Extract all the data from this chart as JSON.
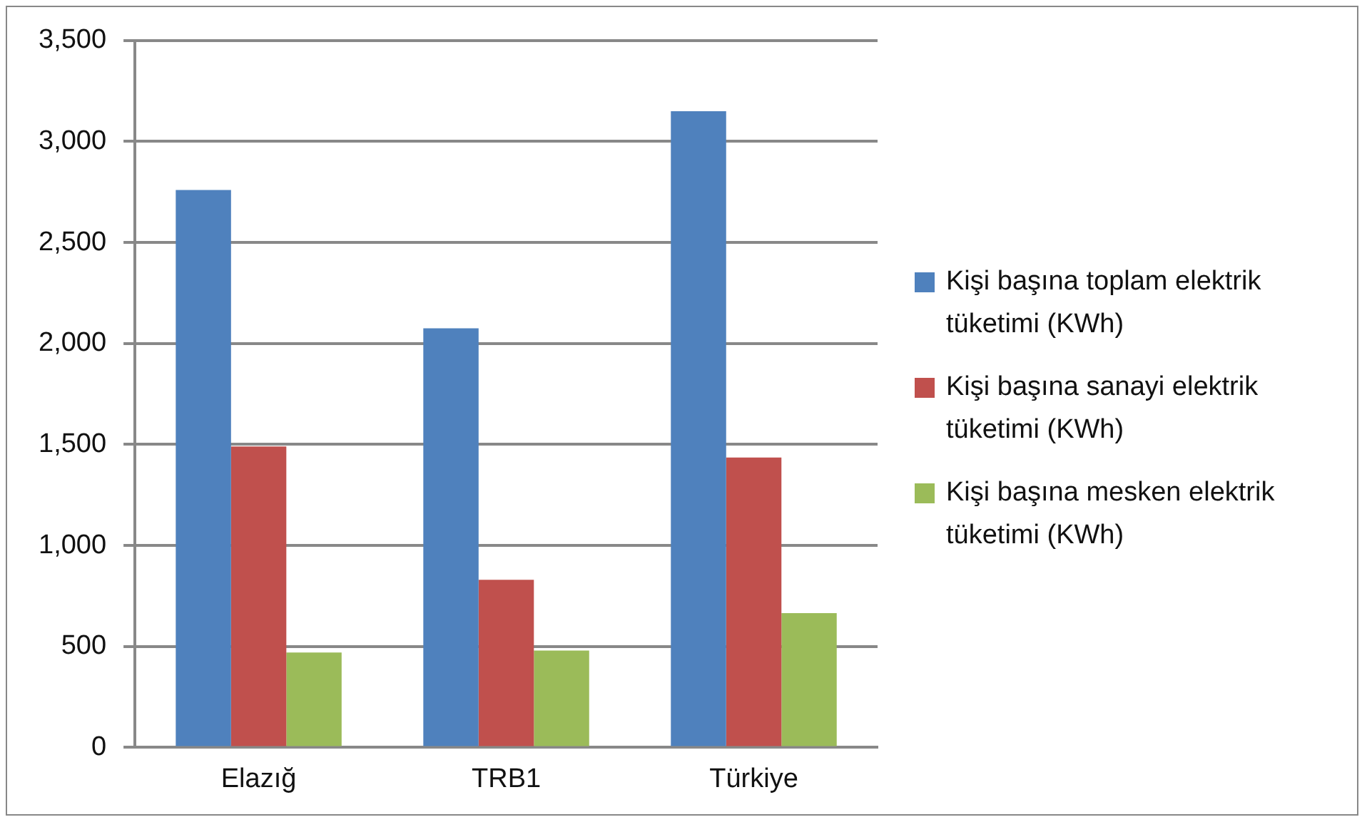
{
  "chart_data": {
    "type": "bar",
    "categories": [
      "Elazığ",
      "TRB1",
      "Türkiye"
    ],
    "series": [
      {
        "name": "Kişi başına toplam elektrik tüketimi (KWh)",
        "color": "#4f81bd",
        "values": [
          2760,
          2075,
          3150
        ]
      },
      {
        "name": "Kişi başına sanayi elektrik tüketimi (KWh)",
        "color": "#c0504d",
        "values": [
          1490,
          830,
          1435
        ]
      },
      {
        "name": "Kişi başına mesken elektrik tüketimi (KWh)",
        "color": "#9bbb59",
        "values": [
          470,
          480,
          665
        ]
      }
    ],
    "ylim": [
      0,
      3500
    ],
    "yticks": [
      0,
      500,
      {
        "value": 1000,
        "label": "1,000"
      },
      {
        "value": 1500,
        "label": "1,500"
      },
      {
        "value": 2000,
        "label": "2,000"
      },
      {
        "value": 2500,
        "label": "2,500"
      },
      {
        "value": 3000,
        "label": "3,000"
      },
      {
        "value": 3500,
        "label": "3,500"
      }
    ],
    "grid": "y",
    "legend": "right"
  }
}
